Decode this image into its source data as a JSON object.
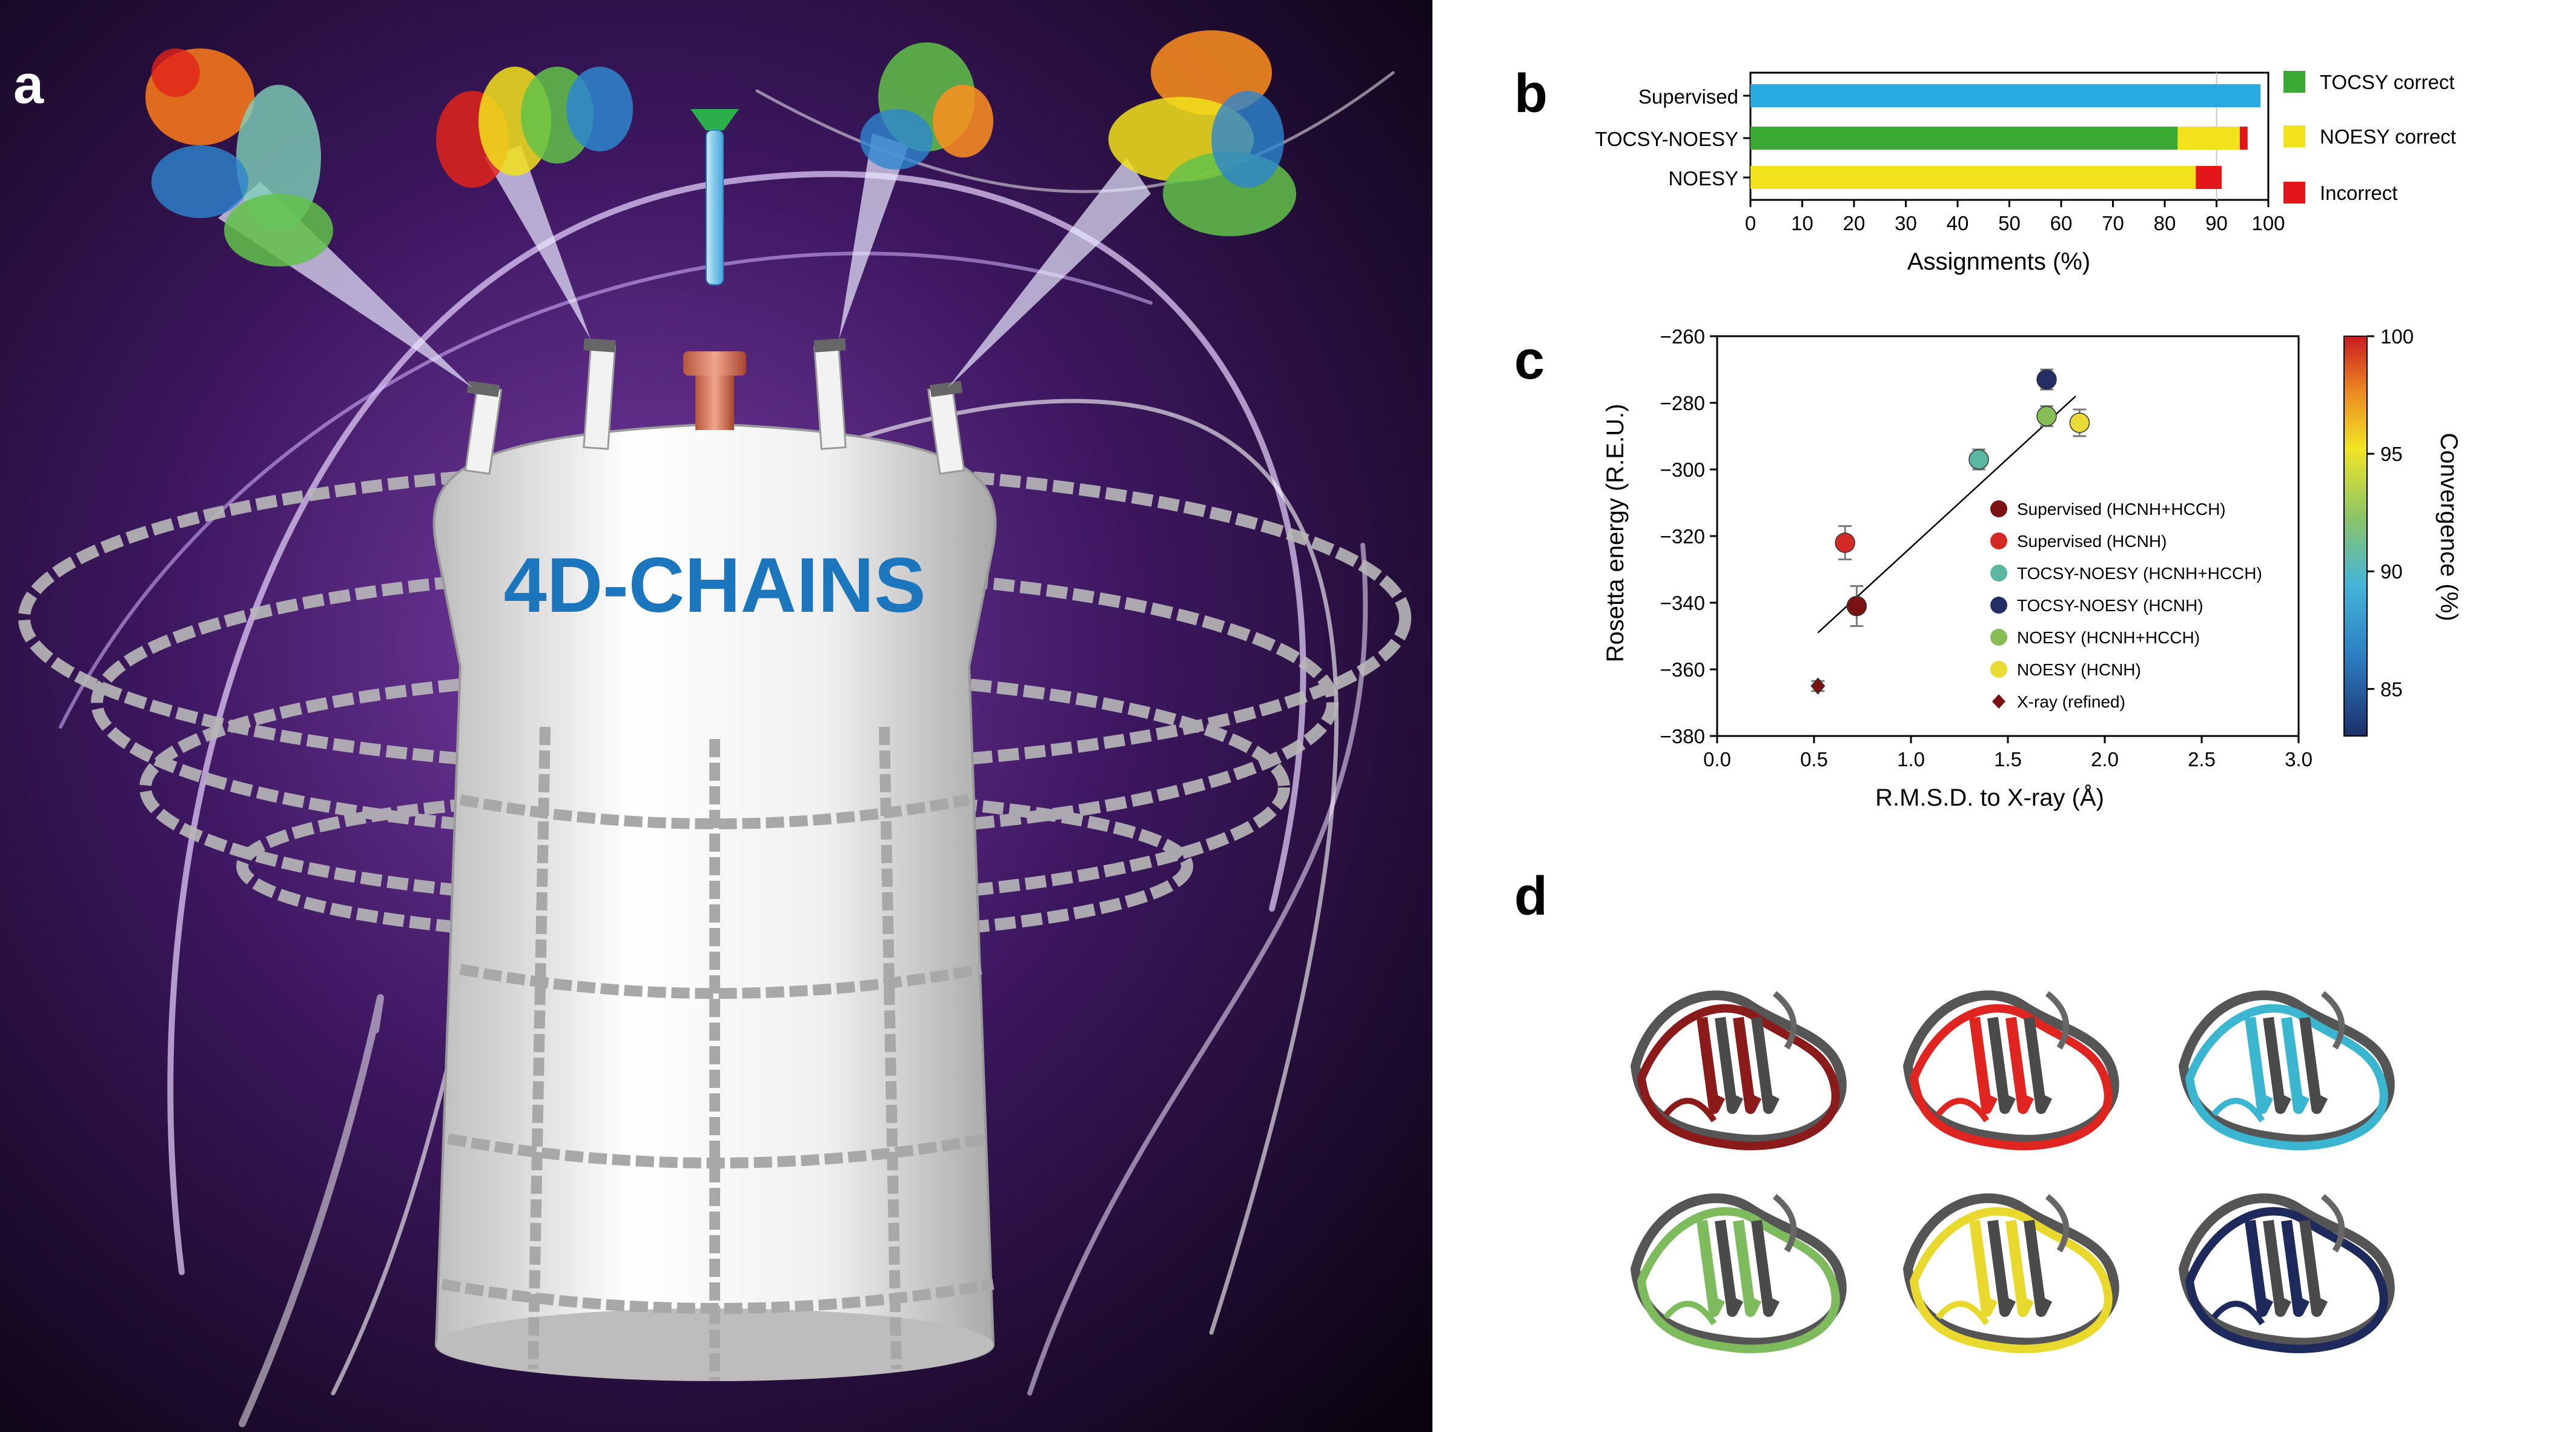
{
  "panel_labels": {
    "a": "a",
    "b": "b",
    "c": "c",
    "d": "d"
  },
  "panel_a": {
    "tank_label": "4D-CHAINS"
  },
  "panel_b": {
    "xlabel": "Assignments (%)",
    "xticks": [
      "0",
      "10",
      "20",
      "30",
      "40",
      "50",
      "60",
      "70",
      "80",
      "90",
      "100"
    ],
    "legend": [
      "TOCSY correct",
      "NOESY correct",
      "Incorrect"
    ]
  },
  "panel_c": {
    "xlabel": "R.M.S.D. to X-ray (Å)",
    "ylabel": "Rosetta energy (R.E.U.)",
    "colorbar_label": "Convergence (%)",
    "xticks": [
      "0.0",
      "0.5",
      "1.0",
      "1.5",
      "2.0",
      "2.5",
      "3.0"
    ],
    "yticks": [
      "−260",
      "−280",
      "−300",
      "−320",
      "−340",
      "−360",
      "−380"
    ],
    "cbar_ticks": [
      "100",
      "95",
      "90",
      "85"
    ]
  },
  "colors": {
    "tocsy_correct": "#3aaa35",
    "noesy_correct": "#f2e21b",
    "incorrect": "#e3161a",
    "supervised_bar": "#29abe2",
    "background_dark": "#1a0a2a"
  },
  "chart_data": [
    {
      "type": "bar",
      "orientation": "horizontal",
      "stacked": true,
      "categories": [
        "Supervised",
        "TOCSY-NOESY",
        "NOESY"
      ],
      "series": [
        {
          "name": "TOCSY correct",
          "values": [
            0,
            82.5,
            0
          ]
        },
        {
          "name": "NOESY correct",
          "values": [
            0,
            12,
            86
          ]
        },
        {
          "name": "Incorrect",
          "values": [
            0,
            1.5,
            5
          ]
        }
      ],
      "supervised_value": 98.5,
      "xlabel": "Assignments (%)",
      "xlim": [
        0,
        100
      ],
      "legend_position": "right"
    },
    {
      "type": "scatter",
      "xlabel": "R.M.S.D. to X-ray (Å)",
      "ylabel": "Rosetta energy (R.E.U.)",
      "xlim": [
        0,
        3
      ],
      "ylim": [
        -380,
        -260
      ],
      "colorbar": {
        "label": "Convergence (%)",
        "range": [
          83,
          100
        ]
      },
      "points": [
        {
          "name": "Supervised (HCNH+HCCH)",
          "x": 0.72,
          "y": -341,
          "err": 6,
          "color": "#7b1113",
          "marker": "circle"
        },
        {
          "name": "Supervised (HCNH)",
          "x": 0.66,
          "y": -322,
          "err": 5,
          "color": "#d42a26",
          "marker": "circle"
        },
        {
          "name": "TOCSY-NOESY (HCNH+HCCH)",
          "x": 1.35,
          "y": -297,
          "err": 3,
          "color": "#5cb7a2",
          "marker": "circle"
        },
        {
          "name": "TOCSY-NOESY (HCNH)",
          "x": 1.7,
          "y": -273,
          "err": 3,
          "color": "#232e66",
          "marker": "circle"
        },
        {
          "name": "NOESY (HCNH+HCCH)",
          "x": 1.7,
          "y": -284,
          "err": 3,
          "color": "#86bd55",
          "marker": "circle"
        },
        {
          "name": "NOESY (HCNH)",
          "x": 1.87,
          "y": -286,
          "err": 4,
          "color": "#e8dc34",
          "marker": "circle"
        },
        {
          "name": "X-ray (refined)",
          "x": 0.52,
          "y": -365,
          "err": 1.5,
          "color": "#7b1113",
          "marker": "diamond"
        }
      ],
      "fit_line": {
        "x": [
          0.52,
          1.85
        ],
        "y": [
          -349,
          -278
        ]
      },
      "legend_position": "lower-right"
    }
  ],
  "panel_d_colors": [
    "#8b1a1a",
    "#e0241f",
    "#3bb6d1",
    "#7dbb5c",
    "#e8d92c",
    "#1f2a5c"
  ]
}
